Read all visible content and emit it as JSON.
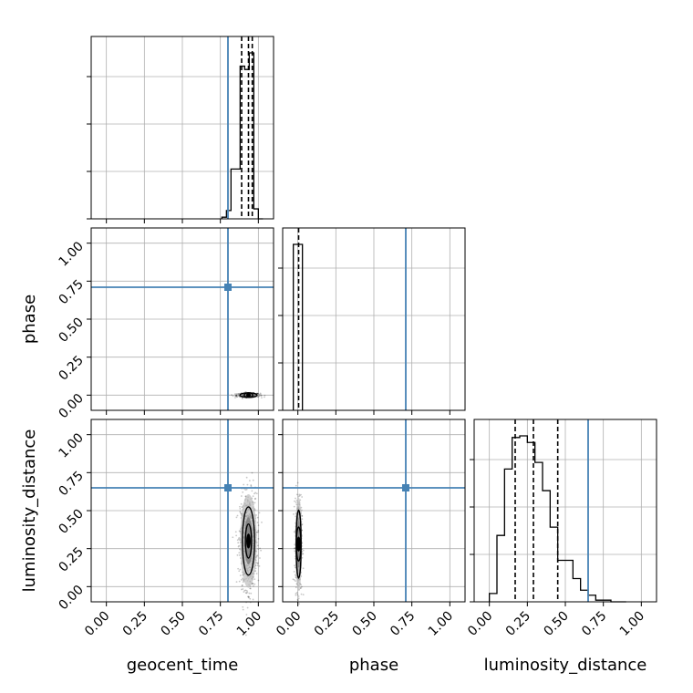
{
  "chart_data": {
    "type": "corner",
    "parameters": [
      "geocent_time",
      "phase",
      "luminosity_distance"
    ],
    "axis_range": [
      -0.1,
      1.1
    ],
    "tick_values": [
      0.0,
      0.25,
      0.5,
      0.75,
      1.0
    ],
    "tick_labels": [
      "0.00",
      "0.25",
      "0.50",
      "0.75",
      "1.00"
    ],
    "truths": {
      "geocent_time": 0.8,
      "phase": 0.71,
      "luminosity_distance": 0.65
    },
    "truth_color": "#4682b4",
    "grid": true,
    "histograms": {
      "geocent_time": {
        "edges": [
          0.76,
          0.79,
          0.82,
          0.85,
          0.88,
          0.91,
          0.94,
          0.97,
          1.0,
          1.03
        ],
        "counts": [
          0.01,
          0.05,
          0.3,
          0.3,
          0.92,
          0.9,
          1.0,
          0.06,
          0.0
        ],
        "quantiles": [
          0.89,
          0.935,
          0.96
        ]
      },
      "phase": {
        "edges": [
          -0.03,
          0.0,
          0.03
        ],
        "counts": [
          1.0,
          1.0
        ],
        "quantiles": [
          0.005
        ]
      },
      "luminosity_distance": {
        "edges": [
          0.0,
          0.05,
          0.1,
          0.15,
          0.2,
          0.25,
          0.3,
          0.35,
          0.4,
          0.45,
          0.5,
          0.55,
          0.6,
          0.65,
          0.7,
          0.75,
          0.8,
          0.85,
          0.9
        ],
        "counts": [
          0.05,
          0.4,
          0.8,
          0.99,
          1.0,
          0.96,
          0.84,
          0.67,
          0.45,
          0.25,
          0.25,
          0.14,
          0.07,
          0.04,
          0.01,
          0.01,
          0.0,
          0.0
        ],
        "quantiles": [
          0.17,
          0.29,
          0.45
        ]
      }
    },
    "joint": {
      "phase_vs_geocent_time": {
        "center": [
          0.935,
          0.0
        ],
        "spread": [
          0.035,
          0.006
        ]
      },
      "luminosity_distance_vs_geocent_time": {
        "center": [
          0.935,
          0.3
        ],
        "spread": [
          0.025,
          0.14
        ]
      },
      "luminosity_distance_vs_phase": {
        "center": [
          0.005,
          0.28
        ],
        "spread": [
          0.01,
          0.14
        ]
      }
    }
  }
}
